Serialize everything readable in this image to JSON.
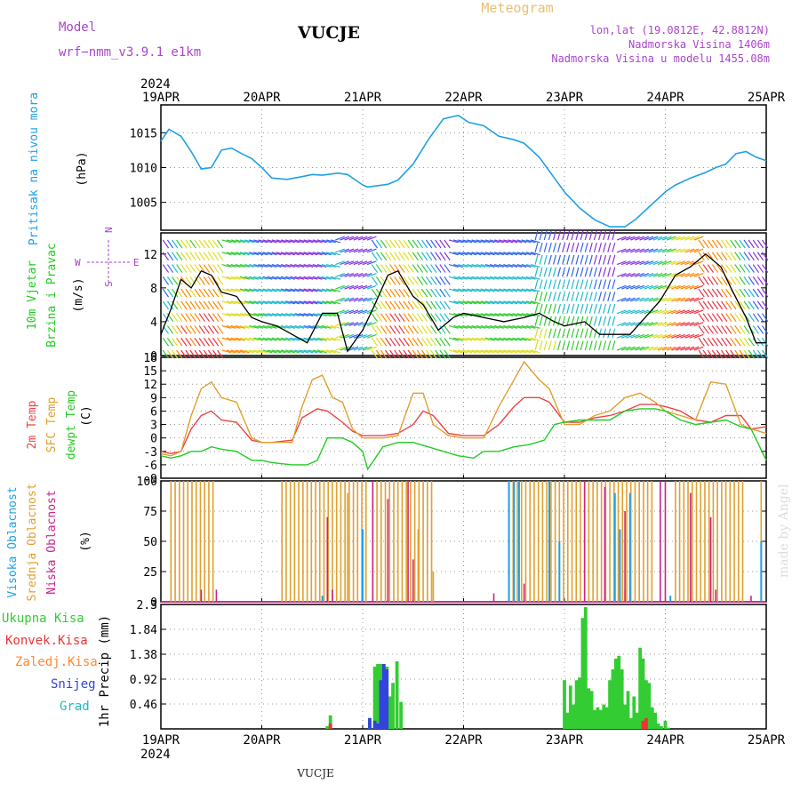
{
  "header": {
    "model_label": "Model",
    "model_name": "wrf−nmm_v3.9.1  e1km",
    "station": "VUCJE",
    "product": "Meteogram",
    "lonlat": "lon,lat (19.0812E, 42.8812N)",
    "elev": "Nadmorska Visina 1406m",
    "elev_model": "Nadmorska Visina u modelu 1455.08m"
  },
  "footer_station": "VUCJE",
  "credit": "made by Angel",
  "colors": {
    "pressure": "#1fa0e6",
    "t2m": "#ee4444",
    "tsfc": "#e0a030",
    "dewpt": "#22cc22",
    "cloud_high": "#1fa0e6",
    "cloud_mid": "#e0a030",
    "cloud_low": "#cc2288",
    "precip_total": "#33cc33",
    "precip_conv": "#ee3333",
    "precip_frz": "#ff8833",
    "snow": "#3344dd",
    "graupel": "#22bbbb",
    "grid": "#999999",
    "label_purple": "#aa44cc"
  },
  "axes": {
    "year": "2024",
    "day_ticks": [
      "19APR",
      "20APR",
      "21APR",
      "22APR",
      "23APR",
      "24APR",
      "25APR"
    ]
  },
  "panels": {
    "pressure": {
      "label": "Pritisak na nivou mora",
      "unit": "(hPa)"
    },
    "wind": {
      "label1": "10m Vjetar",
      "label2": "Brzina i Pravac",
      "unit": "(m/s)",
      "compass": {
        "n": "N",
        "s": "S",
        "e": "E",
        "w": "W"
      }
    },
    "temp": {
      "l1": "2m Temp",
      "l2": "SFC Temp",
      "l3": "dewpt Temp",
      "unit": "(C)"
    },
    "cloud": {
      "l1": "Visoka Oblacnost",
      "l2": "Srednja Oblacnost",
      "l3": "Niska Oblacnost",
      "unit": "(%)"
    },
    "precip": {
      "l1": "Ukupna Kisa",
      "l2": "Konvek.Kisa",
      "l3": "Zaledj.Kisa",
      "l4": "Snijeg",
      "l5": "Grad",
      "unit": "1hr Precip (mm)"
    }
  },
  "chart_data": [
    {
      "type": "line",
      "title": "",
      "ylabel": "Pritisak na nivou mora (hPa)",
      "x_unit": "days since 19APR 00UTC",
      "ylim": [
        1001,
        1019
      ],
      "yticks": [
        1005,
        1010,
        1015
      ],
      "series": [
        {
          "name": "Pritisak na nivou mora",
          "x": [
            0,
            0.08,
            0.2,
            0.3,
            0.4,
            0.5,
            0.6,
            0.7,
            0.8,
            0.9,
            1.0,
            1.1,
            1.25,
            1.4,
            1.5,
            1.6,
            1.75,
            1.85,
            2.0,
            2.05,
            2.25,
            2.35,
            2.5,
            2.65,
            2.8,
            2.95,
            3.05,
            3.2,
            3.35,
            3.5,
            3.6,
            3.75,
            3.9,
            4.0,
            4.15,
            4.3,
            4.45,
            4.6,
            4.7,
            4.85,
            5.0,
            5.1,
            5.25,
            5.4,
            5.5,
            5.6,
            5.7,
            5.8,
            5.9,
            6.0
          ],
          "y": [
            1013.8,
            1015.5,
            1014.5,
            1012.3,
            1009.8,
            1010.0,
            1012.5,
            1012.8,
            1012.0,
            1011.3,
            1010.0,
            1008.5,
            1008.3,
            1008.7,
            1009.0,
            1008.9,
            1009.2,
            1009.0,
            1007.5,
            1007.2,
            1007.6,
            1008.2,
            1010.5,
            1014.0,
            1017.0,
            1017.5,
            1016.5,
            1016.0,
            1014.5,
            1014.0,
            1013.5,
            1011.5,
            1008.5,
            1006.5,
            1004.2,
            1002.5,
            1001.5,
            1001.5,
            1002.5,
            1004.5,
            1006.5,
            1007.5,
            1008.5,
            1009.3,
            1010.0,
            1010.5,
            1012.0,
            1012.3,
            1011.5,
            1011.0
          ]
        }
      ]
    },
    {
      "type": "line",
      "title": "",
      "ylabel": "10m Vjetar Brzina i Pravac (m/s)",
      "x_unit": "days since 19APR 00UTC",
      "ylim": [
        0,
        14.5
      ],
      "yticks": [
        0,
        4,
        8,
        12
      ],
      "series": [
        {
          "name": "wind speed",
          "x": [
            0,
            0.1,
            0.2,
            0.3,
            0.4,
            0.5,
            0.6,
            0.75,
            0.9,
            1.0,
            1.15,
            1.3,
            1.45,
            1.6,
            1.75,
            1.85,
            2.0,
            2.1,
            2.25,
            2.35,
            2.5,
            2.6,
            2.75,
            2.9,
            3.0,
            3.2,
            3.4,
            3.6,
            3.75,
            3.9,
            4.0,
            4.2,
            4.35,
            4.5,
            4.65,
            4.8,
            4.95,
            5.1,
            5.25,
            5.4,
            5.55,
            5.65,
            5.8,
            5.9,
            6.0
          ],
          "y": [
            2.5,
            5.5,
            9.0,
            8.0,
            10.0,
            9.5,
            7.5,
            7.0,
            4.5,
            4.0,
            3.5,
            2.5,
            1.5,
            5.0,
            5.0,
            0.5,
            3.0,
            5.5,
            9.5,
            10.0,
            7.0,
            6.0,
            3.0,
            4.5,
            5.0,
            4.5,
            4.0,
            4.5,
            5.0,
            4.0,
            3.5,
            4.0,
            2.5,
            2.5,
            2.5,
            4.5,
            6.5,
            9.5,
            10.5,
            12.0,
            10.5,
            8.0,
            4.5,
            1.5,
            1.5
          ]
        }
      ],
      "direction_bands": [
        {
          "from": 0.0,
          "to": 0.6,
          "dir": "SW"
        },
        {
          "from": 0.6,
          "to": 1.7,
          "dir": "W"
        },
        {
          "from": 1.7,
          "to": 2.05,
          "dir": "NW"
        },
        {
          "from": 2.05,
          "to": 2.85,
          "dir": "SW"
        },
        {
          "from": 2.85,
          "to": 3.7,
          "dir": "W"
        },
        {
          "from": 3.7,
          "to": 4.5,
          "dir": "N"
        },
        {
          "from": 4.5,
          "to": 5.3,
          "dir": "NW"
        },
        {
          "from": 5.3,
          "to": 6.0,
          "dir": "SW"
        }
      ]
    },
    {
      "type": "line",
      "title": "",
      "ylabel": "Temp (C)",
      "x_unit": "days since 19APR 00UTC",
      "ylim": [
        -9,
        18
      ],
      "yticks": [
        -9,
        -6,
        -3,
        0,
        3,
        6,
        9,
        12,
        15,
        18
      ],
      "series": [
        {
          "name": "2m Temp",
          "x": [
            0,
            0.1,
            0.2,
            0.3,
            0.4,
            0.5,
            0.6,
            0.75,
            0.9,
            1.0,
            1.1,
            1.3,
            1.4,
            1.55,
            1.65,
            1.8,
            1.9,
            2.0,
            2.2,
            2.35,
            2.5,
            2.6,
            2.7,
            2.85,
            3.0,
            3.2,
            3.35,
            3.5,
            3.6,
            3.75,
            3.85,
            4.0,
            4.15,
            4.3,
            4.45,
            4.6,
            4.75,
            4.9,
            5.0,
            5.15,
            5.3,
            5.45,
            5.6,
            5.75,
            5.85,
            6.0
          ],
          "y": [
            -3,
            -3.5,
            -3,
            2,
            5,
            6,
            4,
            3.5,
            -0.5,
            -1,
            -1,
            -0.5,
            4.5,
            6.5,
            6,
            3.5,
            1.5,
            0.5,
            0.5,
            1,
            3,
            6,
            5,
            1,
            0.5,
            0.5,
            3,
            7,
            9,
            9,
            8,
            3.5,
            3.5,
            4.5,
            5,
            6,
            7.5,
            7.5,
            7,
            6,
            4,
            3.5,
            5,
            5,
            2,
            2.5
          ]
        },
        {
          "name": "SFC Temp",
          "x": [
            0,
            0.1,
            0.2,
            0.3,
            0.4,
            0.5,
            0.6,
            0.75,
            0.9,
            1.0,
            1.1,
            1.3,
            1.4,
            1.5,
            1.6,
            1.7,
            1.8,
            1.9,
            2.0,
            2.2,
            2.35,
            2.5,
            2.6,
            2.7,
            2.85,
            3.0,
            3.2,
            3.35,
            3.5,
            3.6,
            3.75,
            3.85,
            4.0,
            4.15,
            4.3,
            4.45,
            4.6,
            4.75,
            4.9,
            5.0,
            5.15,
            5.3,
            5.45,
            5.6,
            5.75,
            5.85,
            6.0
          ],
          "y": [
            -3.5,
            -4,
            -3,
            5,
            11,
            12.5,
            9,
            8,
            0,
            -1,
            -1,
            -1,
            7,
            13,
            14,
            9,
            8,
            2,
            0,
            0,
            0.5,
            10,
            10,
            3,
            0.5,
            0,
            0,
            7,
            13,
            17,
            13,
            11,
            3,
            3,
            5,
            6,
            9,
            10,
            8,
            6,
            5,
            4,
            12.5,
            12,
            3,
            2,
            1
          ]
        },
        {
          "name": "dewpt Temp",
          "x": [
            0,
            0.1,
            0.2,
            0.3,
            0.4,
            0.5,
            0.6,
            0.75,
            0.9,
            1.0,
            1.1,
            1.3,
            1.45,
            1.55,
            1.65,
            1.8,
            1.9,
            2.0,
            2.05,
            2.2,
            2.35,
            2.5,
            2.65,
            2.8,
            2.95,
            3.1,
            3.2,
            3.35,
            3.5,
            3.65,
            3.8,
            3.9,
            4.0,
            4.15,
            4.3,
            4.45,
            4.6,
            4.75,
            4.9,
            5.0,
            5.15,
            5.3,
            5.45,
            5.6,
            5.75,
            5.85,
            6.0
          ],
          "y": [
            -4,
            -4.5,
            -4,
            -3,
            -3,
            -2,
            -2.5,
            -3,
            -5,
            -5,
            -5.5,
            -6,
            -6,
            -5,
            0,
            0,
            -1,
            -3,
            -7,
            -2,
            -1,
            -1,
            -2,
            -3,
            -4,
            -4.5,
            -3,
            -3,
            -2,
            -1.5,
            -0.5,
            3,
            3.5,
            4,
            4,
            4,
            6,
            6.5,
            6.5,
            6,
            4,
            3,
            3.5,
            4,
            2.5,
            2,
            -5
          ]
        }
      ]
    },
    {
      "type": "bar",
      "title": "",
      "ylabel": "Oblacnost (%)",
      "x_unit": "days since 19APR 00UTC",
      "ylim": [
        0,
        100
      ],
      "yticks": [
        0,
        25,
        50,
        75,
        100
      ],
      "series": [
        {
          "name": "Srednja Oblacnost",
          "segments": [
            [
              0.1,
              0.55,
              100
            ],
            [
              1.2,
              2.05,
              100
            ],
            [
              2.1,
              2.7,
              100
            ],
            [
              3.45,
              4.9,
              100
            ],
            [
              5.1,
              5.8,
              100
            ]
          ],
          "lows": [
            [
              1.85,
              90
            ],
            [
              2.55,
              60
            ],
            [
              2.7,
              25
            ],
            [
              4.4,
              50
            ],
            [
              4.6,
              10
            ],
            [
              5.95,
              100
            ]
          ]
        },
        {
          "name": "Niska Oblacnost",
          "bars": [
            [
              0.4,
              10
            ],
            [
              0.55,
              10
            ],
            [
              1.65,
              70
            ],
            [
              1.7,
              10
            ],
            [
              2.1,
              100
            ],
            [
              2.25,
              85
            ],
            [
              2.45,
              100
            ],
            [
              2.5,
              35
            ],
            [
              3.3,
              7
            ],
            [
              3.6,
              15
            ],
            [
              4.2,
              100
            ],
            [
              4.4,
              95
            ],
            [
              4.6,
              75
            ],
            [
              4.95,
              100
            ],
            [
              5.0,
              100
            ],
            [
              5.25,
              90
            ],
            [
              5.45,
              70
            ],
            [
              5.5,
              10
            ],
            [
              5.85,
              5
            ]
          ]
        },
        {
          "name": "Visoka Oblacnost",
          "bars": [
            [
              1.6,
              5
            ],
            [
              2.0,
              60
            ],
            [
              3.45,
              100
            ],
            [
              3.5,
              100
            ],
            [
              3.55,
              100
            ],
            [
              3.85,
              100
            ],
            [
              3.95,
              50
            ],
            [
              4.5,
              90
            ],
            [
              4.55,
              60
            ],
            [
              4.65,
              90
            ],
            [
              5.05,
              5
            ],
            [
              5.95,
              50
            ]
          ]
        }
      ]
    },
    {
      "type": "bar",
      "title": "",
      "ylabel": "1hr Precip (mm)",
      "x_unit": "days since 19APR 00UTC",
      "ylim": [
        0,
        2.3
      ],
      "yticks": [
        0.46,
        0.92,
        1.38,
        1.84,
        2.3
      ],
      "series": [
        {
          "name": "Ukupna Kisa",
          "x": [
            1.65,
            1.68,
            2.07,
            2.12,
            2.15,
            2.18,
            2.21,
            2.24,
            2.27,
            2.3,
            2.34,
            2.38,
            4.0,
            4.03,
            4.06,
            4.09,
            4.12,
            4.15,
            4.18,
            4.21,
            4.24,
            4.27,
            4.3,
            4.33,
            4.36,
            4.39,
            4.42,
            4.45,
            4.48,
            4.51,
            4.54,
            4.57,
            4.6,
            4.63,
            4.66,
            4.69,
            4.72,
            4.75,
            4.78,
            4.81,
            4.84,
            4.87,
            4.9,
            4.93,
            4.96,
            5.0,
            5.03
          ],
          "values": [
            0.05,
            0.25,
            0.2,
            1.15,
            1.2,
            1.2,
            1.1,
            1.15,
            0.6,
            0.85,
            1.25,
            0.5,
            0.9,
            0.3,
            0.8,
            0.45,
            0.9,
            0.95,
            2.05,
            2.25,
            0.75,
            0.7,
            0.35,
            0.4,
            0.35,
            0.45,
            0.4,
            0.9,
            1.1,
            1.3,
            1.35,
            1.1,
            0.45,
            0.7,
            0.2,
            0.6,
            0.3,
            1.5,
            1.3,
            0.9,
            0.85,
            0.4,
            0.3,
            0.1,
            0.05,
            0.15,
            0.02
          ]
        },
        {
          "name": "Snijeg",
          "x": [
            2.07,
            2.12,
            2.15,
            2.18,
            2.21,
            2.24
          ],
          "values": [
            0.2,
            0.15,
            0.1,
            0.9,
            1.2,
            1.1
          ]
        },
        {
          "name": "Konvek.Kisa",
          "x": [
            1.68,
            4.78,
            4.81
          ],
          "values": [
            0.1,
            0.15,
            0.2
          ]
        }
      ]
    }
  ]
}
